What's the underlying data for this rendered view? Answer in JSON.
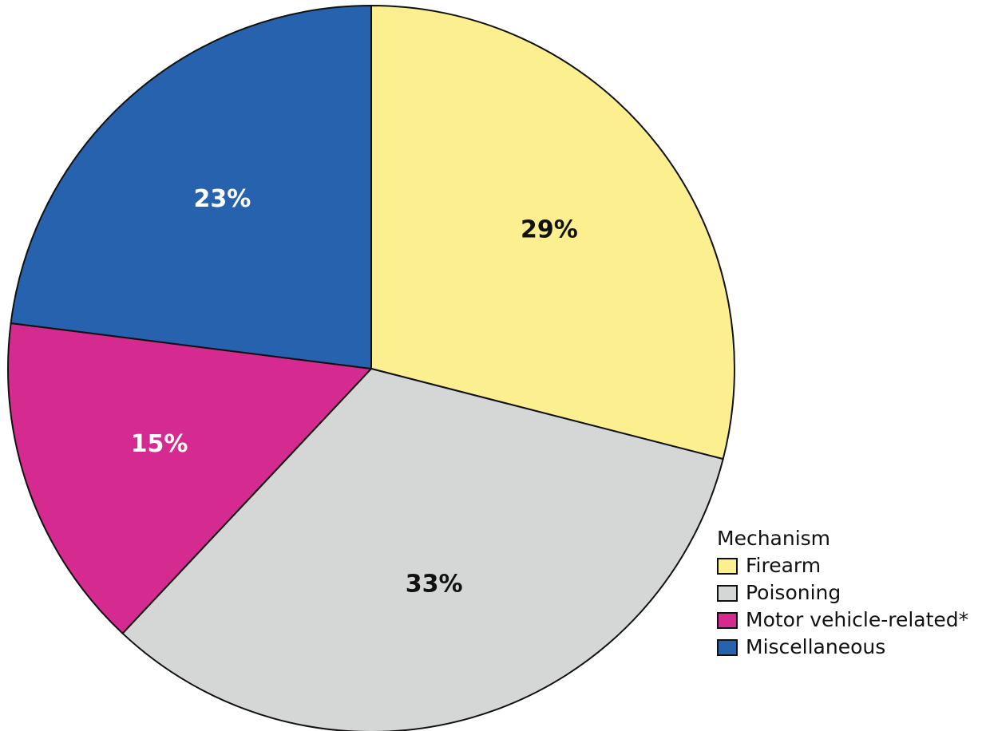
{
  "chart_data": {
    "type": "pie",
    "title": "",
    "slices": [
      {
        "label": "Firearm",
        "value": 29,
        "display": "29%",
        "color": "#fbef8f",
        "label_color": "#111111"
      },
      {
        "label": "Poisoning",
        "value": 33,
        "display": "33%",
        "color": "#d5d6d6",
        "label_color": "#111111"
      },
      {
        "label": "Motor vehicle-related*",
        "value": 15,
        "display": "15%",
        "color": "#d52a8f",
        "label_color": "#ffffff"
      },
      {
        "label": "Miscellaneous",
        "value": 23,
        "display": "23%",
        "color": "#2762ae",
        "label_color": "#ffffff"
      }
    ],
    "start_angle": "12 o'clock",
    "direction": "clockwise",
    "legend": {
      "title": "Mechanism",
      "position": "bottom-right"
    }
  }
}
